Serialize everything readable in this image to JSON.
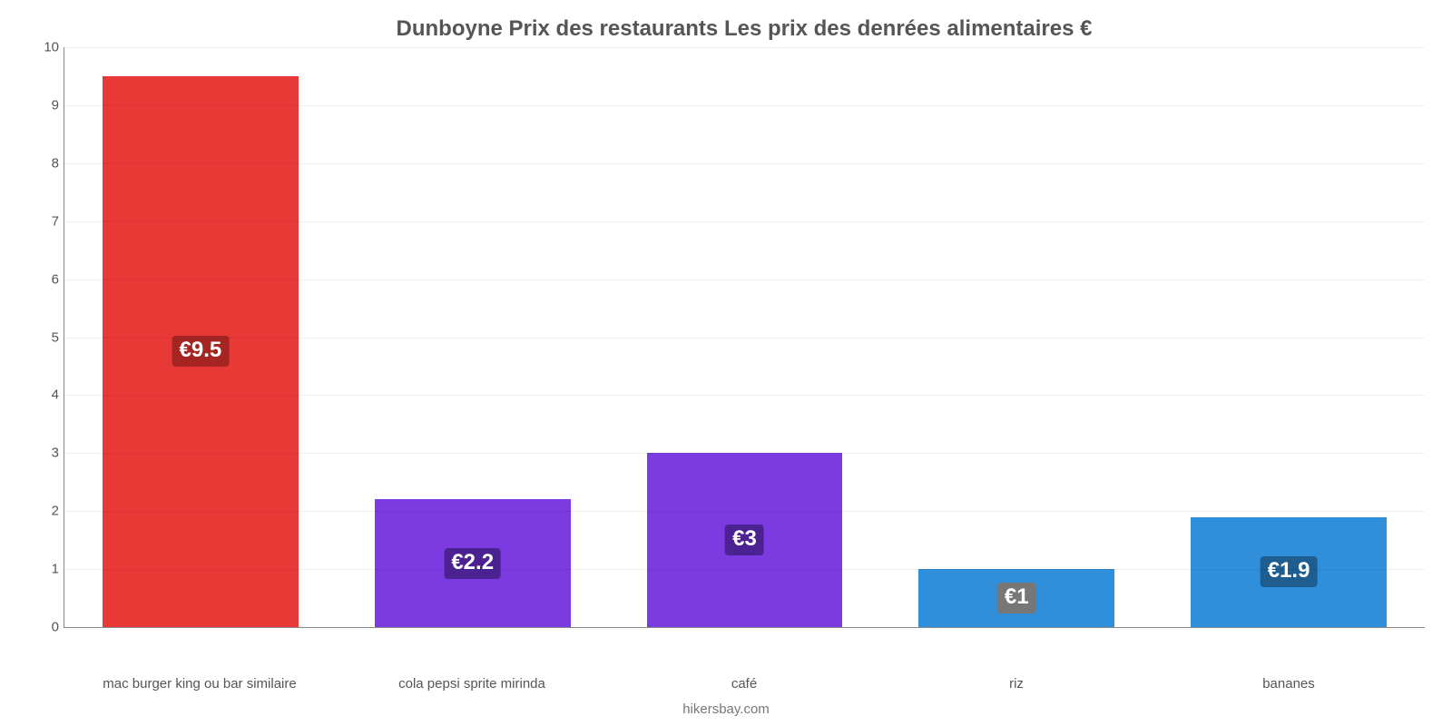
{
  "chart": {
    "type": "bar",
    "title": "Dunboyne Prix des restaurants Les prix des denrées alimentaires €",
    "title_fontsize": 24,
    "title_color": "#555555",
    "background_color": "#ffffff",
    "grid_color": "rgba(0,0,0,0.06)",
    "axis_color": "#888888",
    "ylim": [
      0,
      10
    ],
    "ytick_step": 1,
    "yticks": [
      0,
      1,
      2,
      3,
      4,
      5,
      6,
      7,
      8,
      9,
      10
    ],
    "tick_fontsize": 15,
    "tick_color": "#555555",
    "bar_width_pct": 72,
    "value_label_fontsize": 24,
    "value_label_color": "#ffffff",
    "categories": [
      "mac burger king ou bar similaire",
      "cola pepsi sprite mirinda",
      "café",
      "riz",
      "bananes"
    ],
    "values": [
      9.5,
      2.2,
      3,
      1,
      1.9
    ],
    "value_labels": [
      "€9.5",
      "€2.2",
      "€3",
      "€1",
      "€1.9"
    ],
    "bar_colors": [
      "#e83936",
      "#7b3be0",
      "#7b3be0",
      "#2f8fda",
      "#2f8fda"
    ],
    "badge_bg_colors": [
      "#a52523",
      "#4c2292",
      "#4c2292",
      "#777777",
      "#1e5d90"
    ],
    "footer": "hikersbay.com",
    "footer_color": "#777777",
    "footer_fontsize": 15
  }
}
